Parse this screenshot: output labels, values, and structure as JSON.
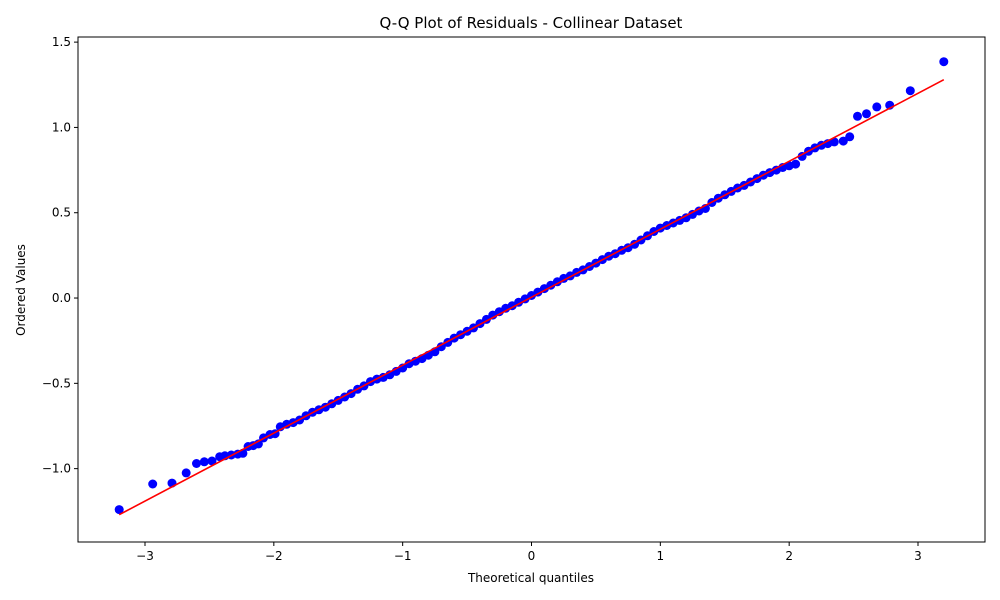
{
  "chart_data": {
    "type": "scatter",
    "title": "Q-Q Plot of Residuals - Collinear Dataset",
    "xlabel": "Theoretical quantiles",
    "ylabel": "Ordered Values",
    "xlim": [
      -3.52,
      3.52
    ],
    "ylim": [
      -1.43,
      1.53
    ],
    "x_ticks": [
      -3,
      -2,
      -1,
      0,
      1,
      2,
      3
    ],
    "x_tick_labels": [
      "−3",
      "−2",
      "−1",
      "0",
      "1",
      "2",
      "3"
    ],
    "y_ticks": [
      -1.0,
      -0.5,
      0.0,
      0.5,
      1.0,
      1.5
    ],
    "y_tick_labels": [
      "−1.0",
      "−0.5",
      "0.0",
      "0.5",
      "1.0",
      "1.5"
    ],
    "grid": false,
    "marker_color": "#0000ff",
    "line_color": "#ff0000",
    "fit_line": {
      "x": [
        -3.2,
        3.2
      ],
      "y": [
        -1.27,
        1.28
      ]
    },
    "series": [
      {
        "points": [
          [
            -3.2,
            -1.24
          ],
          [
            -2.94,
            -1.09
          ],
          [
            -2.79,
            -1.085
          ],
          [
            -2.68,
            -1.025
          ],
          [
            -2.6,
            -0.97
          ],
          [
            -2.54,
            -0.96
          ],
          [
            -2.48,
            -0.955
          ],
          [
            -2.42,
            -0.93
          ],
          [
            -2.38,
            -0.925
          ],
          [
            -2.33,
            -0.92
          ],
          [
            -2.28,
            -0.915
          ],
          [
            -2.24,
            -0.91
          ],
          [
            -2.2,
            -0.87
          ],
          [
            -2.16,
            -0.865
          ],
          [
            -2.12,
            -0.855
          ],
          [
            -2.08,
            -0.82
          ],
          [
            -2.03,
            -0.8
          ],
          [
            -1.99,
            -0.795
          ],
          [
            -1.95,
            -0.755
          ],
          [
            -1.9,
            -0.74
          ],
          [
            -1.85,
            -0.73
          ],
          [
            -1.8,
            -0.715
          ],
          [
            -1.75,
            -0.69
          ],
          [
            -1.7,
            -0.67
          ],
          [
            -1.65,
            -0.655
          ],
          [
            -1.6,
            -0.64
          ],
          [
            -1.55,
            -0.62
          ],
          [
            -1.5,
            -0.6
          ],
          [
            -1.45,
            -0.58
          ],
          [
            -1.4,
            -0.56
          ],
          [
            -1.35,
            -0.535
          ],
          [
            -1.3,
            -0.515
          ],
          [
            -1.25,
            -0.49
          ],
          [
            -1.2,
            -0.475
          ],
          [
            -1.15,
            -0.465
          ],
          [
            -1.1,
            -0.45
          ],
          [
            -1.05,
            -0.43
          ],
          [
            -1.0,
            -0.41
          ],
          [
            -0.95,
            -0.385
          ],
          [
            -0.9,
            -0.37
          ],
          [
            -0.85,
            -0.355
          ],
          [
            -0.8,
            -0.335
          ],
          [
            -0.75,
            -0.315
          ],
          [
            -0.7,
            -0.285
          ],
          [
            -0.65,
            -0.26
          ],
          [
            -0.6,
            -0.235
          ],
          [
            -0.55,
            -0.215
          ],
          [
            -0.5,
            -0.195
          ],
          [
            -0.45,
            -0.175
          ],
          [
            -0.4,
            -0.15
          ],
          [
            -0.35,
            -0.125
          ],
          [
            -0.3,
            -0.1
          ],
          [
            -0.25,
            -0.08
          ],
          [
            -0.2,
            -0.06
          ],
          [
            -0.15,
            -0.045
          ],
          [
            -0.1,
            -0.025
          ],
          [
            -0.05,
            -0.005
          ],
          [
            0.0,
            0.015
          ],
          [
            0.05,
            0.035
          ],
          [
            0.1,
            0.055
          ],
          [
            0.15,
            0.075
          ],
          [
            0.2,
            0.095
          ],
          [
            0.25,
            0.115
          ],
          [
            0.3,
            0.13
          ],
          [
            0.35,
            0.15
          ],
          [
            0.4,
            0.165
          ],
          [
            0.45,
            0.185
          ],
          [
            0.5,
            0.205
          ],
          [
            0.55,
            0.225
          ],
          [
            0.6,
            0.245
          ],
          [
            0.65,
            0.26
          ],
          [
            0.7,
            0.28
          ],
          [
            0.75,
            0.295
          ],
          [
            0.8,
            0.315
          ],
          [
            0.85,
            0.34
          ],
          [
            0.9,
            0.365
          ],
          [
            0.95,
            0.39
          ],
          [
            1.0,
            0.41
          ],
          [
            1.05,
            0.425
          ],
          [
            1.1,
            0.44
          ],
          [
            1.15,
            0.455
          ],
          [
            1.2,
            0.47
          ],
          [
            1.25,
            0.49
          ],
          [
            1.3,
            0.51
          ],
          [
            1.35,
            0.525
          ],
          [
            1.4,
            0.56
          ],
          [
            1.45,
            0.585
          ],
          [
            1.5,
            0.605
          ],
          [
            1.55,
            0.625
          ],
          [
            1.6,
            0.645
          ],
          [
            1.65,
            0.66
          ],
          [
            1.7,
            0.68
          ],
          [
            1.75,
            0.7
          ],
          [
            1.8,
            0.72
          ],
          [
            1.85,
            0.735
          ],
          [
            1.9,
            0.75
          ],
          [
            1.95,
            0.765
          ],
          [
            2.0,
            0.775
          ],
          [
            2.05,
            0.785
          ],
          [
            2.1,
            0.83
          ],
          [
            2.15,
            0.86
          ],
          [
            2.2,
            0.88
          ],
          [
            2.25,
            0.895
          ],
          [
            2.3,
            0.905
          ],
          [
            2.35,
            0.915
          ],
          [
            2.42,
            0.92
          ],
          [
            2.47,
            0.945
          ],
          [
            2.53,
            1.065
          ],
          [
            2.6,
            1.08
          ],
          [
            2.68,
            1.12
          ],
          [
            2.78,
            1.13
          ],
          [
            2.94,
            1.215
          ],
          [
            3.2,
            1.385
          ]
        ]
      }
    ]
  }
}
